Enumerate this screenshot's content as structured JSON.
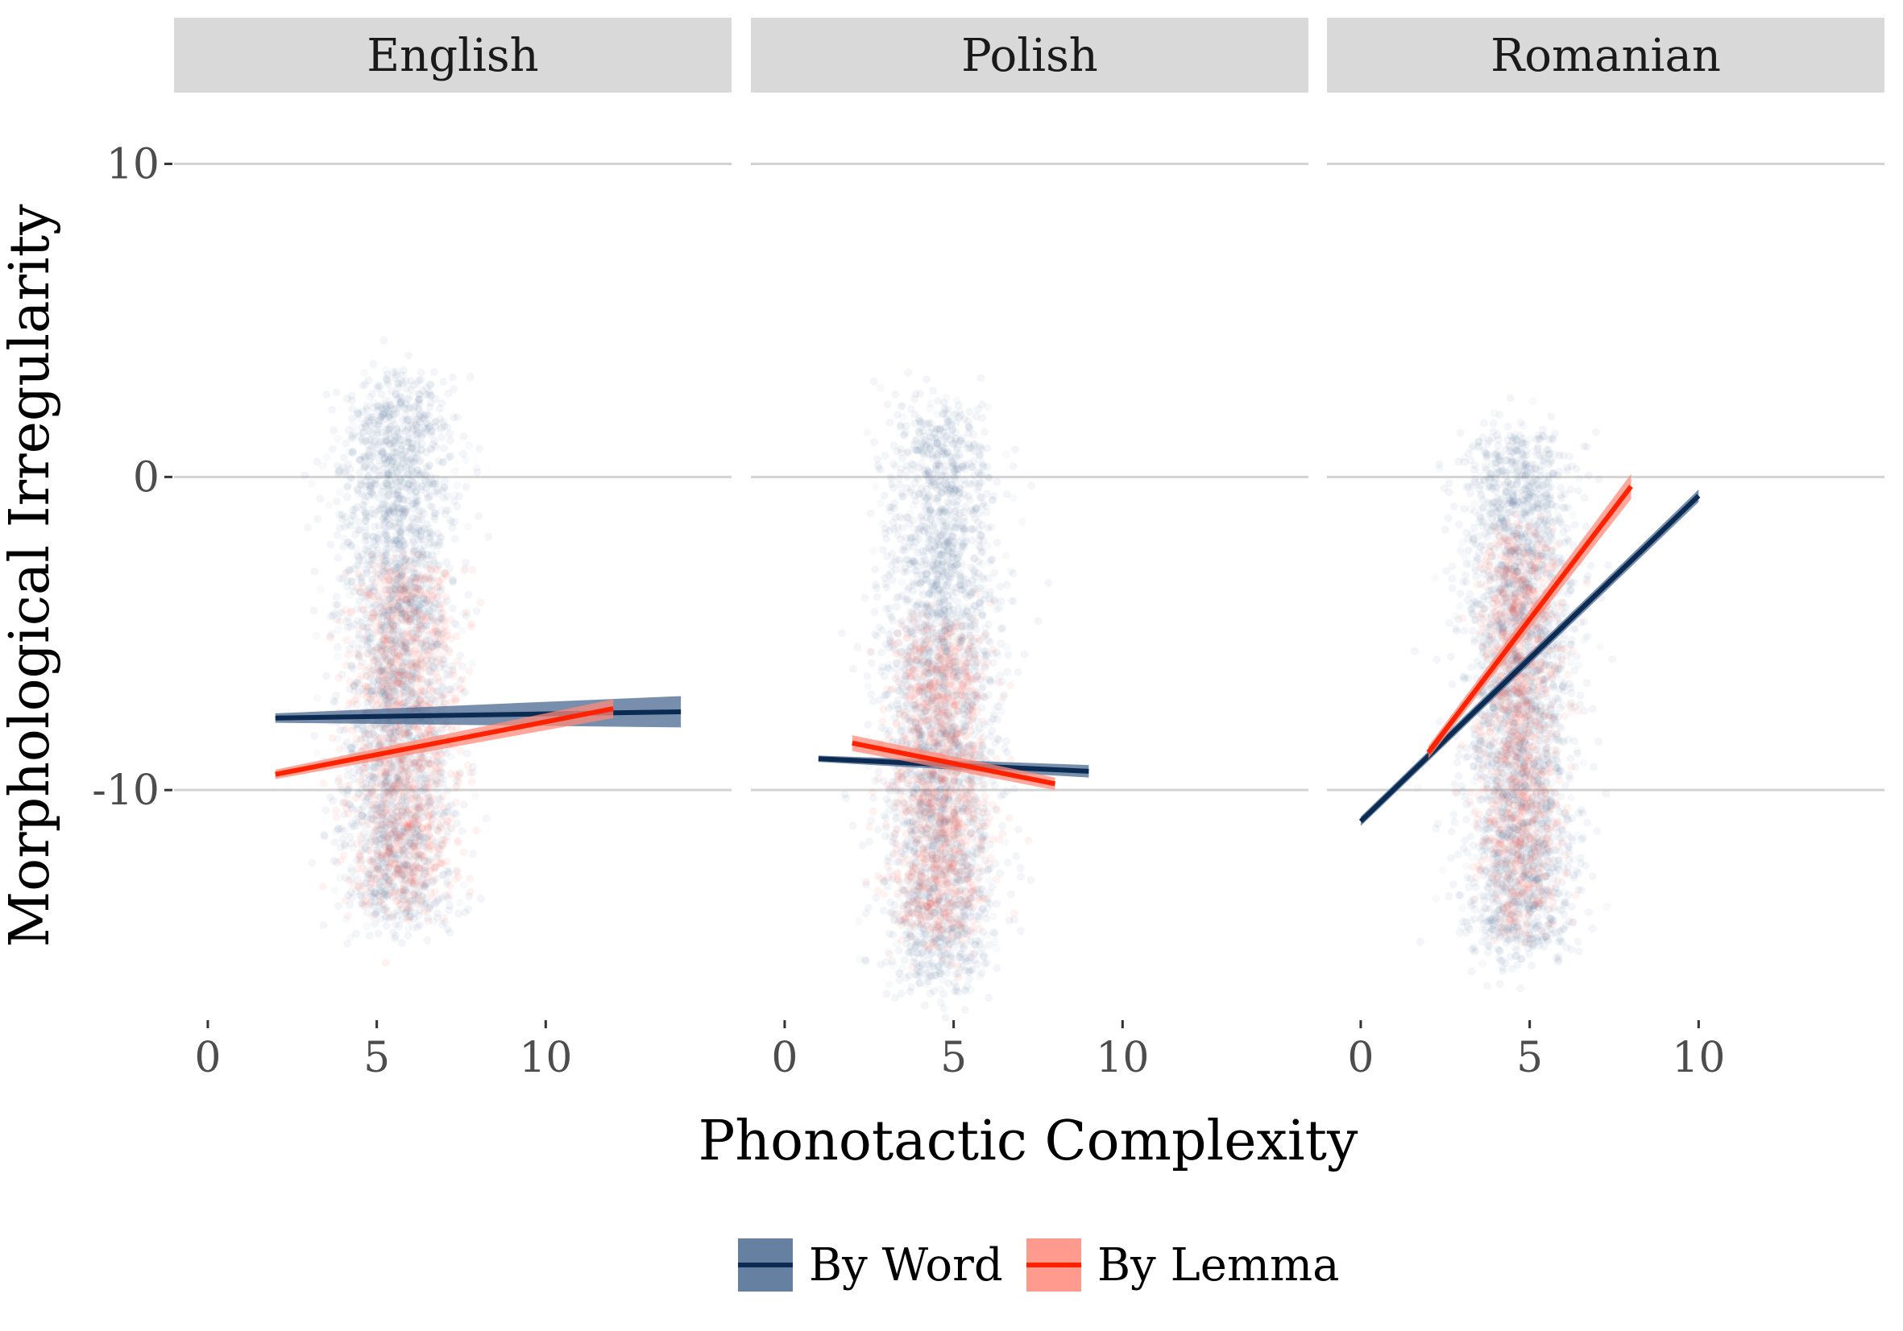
{
  "chart_data": {
    "type": "scatter",
    "title": "",
    "xlabel": "Phonotactic Complexity",
    "ylabel": "Morphological Irregularity",
    "xlim": [
      -1,
      15.5
    ],
    "ylim": [
      -17.3,
      12.2
    ],
    "x_ticks": [
      0,
      5,
      10
    ],
    "y_ticks": [
      -10,
      0,
      10
    ],
    "grid": true,
    "legend": {
      "position": "bottom",
      "entries": [
        {
          "key": "word",
          "label": "By Word",
          "color": "#0b2b52",
          "ribbon_color": "#4a6a91"
        },
        {
          "key": "lemma",
          "label": "By Lemma",
          "color": "#ff2200",
          "ribbon_color": "#ff8a7a"
        }
      ]
    },
    "panels": [
      {
        "name": "English",
        "word_fit": {
          "x": [
            2,
            14
          ],
          "y": [
            -7.7,
            -7.5
          ],
          "se": [
            0.15,
            0.5
          ]
        },
        "lemma_fit": {
          "x": [
            2,
            12
          ],
          "y": [
            -9.5,
            -7.4
          ],
          "se": [
            0.15,
            0.3
          ]
        },
        "word_points": {
          "x_center": 5.6,
          "x_spread": 1.0,
          "y_range": [
            -14,
            3
          ]
        },
        "lemma_points": {
          "x_center": 5.8,
          "x_spread": 0.9,
          "y_range": [
            -13.5,
            -3
          ]
        }
      },
      {
        "name": "Polish",
        "word_fit": {
          "x": [
            1,
            9
          ],
          "y": [
            -9.0,
            -9.4
          ],
          "se": [
            0.1,
            0.2
          ]
        },
        "lemma_fit": {
          "x": [
            2,
            8
          ],
          "y": [
            -8.5,
            -9.8
          ],
          "se": [
            0.25,
            0.2
          ]
        },
        "word_points": {
          "x_center": 4.6,
          "x_spread": 1.0,
          "y_range": [
            -16,
            2
          ]
        },
        "lemma_points": {
          "x_center": 4.6,
          "x_spread": 0.8,
          "y_range": [
            -14.5,
            -5
          ]
        }
      },
      {
        "name": "Romanian",
        "word_fit": {
          "x": [
            0,
            10
          ],
          "y": [
            -11.0,
            -0.6
          ],
          "se": [
            0.15,
            0.2
          ]
        },
        "lemma_fit": {
          "x": [
            2,
            8
          ],
          "y": [
            -8.8,
            -0.3
          ],
          "se": [
            0.2,
            0.4
          ]
        },
        "word_points": {
          "x_center": 4.7,
          "x_spread": 1.0,
          "y_range": [
            -15,
            1
          ]
        },
        "lemma_points": {
          "x_center": 4.7,
          "x_spread": 0.7,
          "y_range": [
            -14,
            -2
          ]
        }
      }
    ]
  }
}
